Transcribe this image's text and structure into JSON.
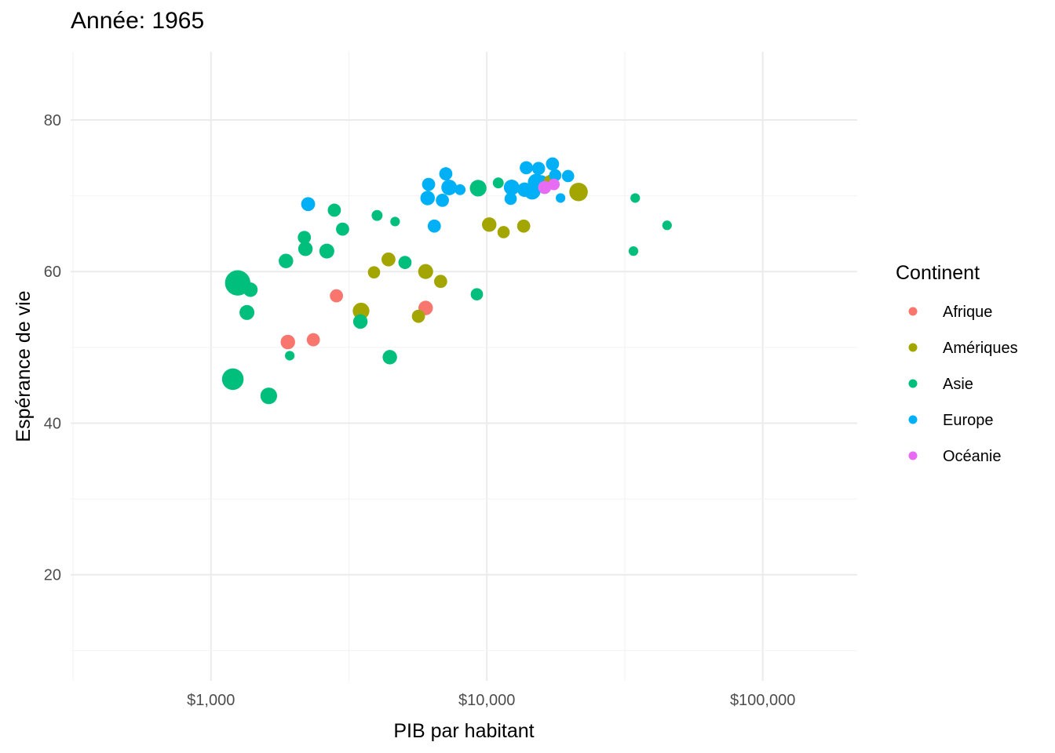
{
  "chart_data": {
    "type": "scatter",
    "title": "Année: 1965",
    "xlabel": "PIB par habitant",
    "ylabel": "Espérance de vie",
    "x_scale": "log10",
    "xlim": [
      310,
      220000
    ],
    "ylim": [
      6,
      89
    ],
    "x_ticks": [
      1000,
      10000,
      100000
    ],
    "x_tick_labels": [
      "$1,000",
      "$10,000",
      "$100,000"
    ],
    "y_ticks": [
      20,
      40,
      60,
      80
    ],
    "y_tick_labels": [
      "20",
      "40",
      "60",
      "80"
    ],
    "grid": true,
    "legend": {
      "title": "Continent",
      "position": "right"
    },
    "size_encoding": "population (no legend shown)",
    "series": [
      {
        "name": "Afrique",
        "color": "#F8766D",
        "points": [
          {
            "x": 1900,
            "y": 50.7,
            "size": 2
          },
          {
            "x": 2350,
            "y": 51.0,
            "size": 1.5
          },
          {
            "x": 2850,
            "y": 56.8,
            "size": 1.5
          },
          {
            "x": 6000,
            "y": 55.2,
            "size": 2
          }
        ]
      },
      {
        "name": "Amériques",
        "color": "#A3A500",
        "points": [
          {
            "x": 3500,
            "y": 54.8,
            "size": 3
          },
          {
            "x": 3900,
            "y": 59.9,
            "size": 1.2
          },
          {
            "x": 4400,
            "y": 61.6,
            "size": 1.8
          },
          {
            "x": 5650,
            "y": 54.1,
            "size": 1.5
          },
          {
            "x": 6000,
            "y": 60.0,
            "size": 2.2
          },
          {
            "x": 6800,
            "y": 58.7,
            "size": 1.5
          },
          {
            "x": 10200,
            "y": 66.2,
            "size": 2
          },
          {
            "x": 11500,
            "y": 65.2,
            "size": 1.2
          },
          {
            "x": 13600,
            "y": 66.0,
            "size": 1.5
          },
          {
            "x": 17000,
            "y": 71.9,
            "size": 1.5
          },
          {
            "x": 21500,
            "y": 70.5,
            "size": 4
          }
        ]
      },
      {
        "name": "Asie",
        "color": "#00BF7D",
        "points": [
          {
            "x": 1250,
            "y": 58.5,
            "size": 9
          },
          {
            "x": 1200,
            "y": 45.8,
            "size": 6
          },
          {
            "x": 1390,
            "y": 57.6,
            "size": 2
          },
          {
            "x": 1350,
            "y": 54.6,
            "size": 2.2
          },
          {
            "x": 1620,
            "y": 43.6,
            "size": 3
          },
          {
            "x": 1870,
            "y": 61.4,
            "size": 2
          },
          {
            "x": 1930,
            "y": 48.9,
            "size": 0.5
          },
          {
            "x": 2180,
            "y": 64.5,
            "size": 1.5
          },
          {
            "x": 2200,
            "y": 63.0,
            "size": 2
          },
          {
            "x": 2630,
            "y": 62.7,
            "size": 2.2
          },
          {
            "x": 2800,
            "y": 68.1,
            "size": 1.5
          },
          {
            "x": 3000,
            "y": 65.6,
            "size": 1.5
          },
          {
            "x": 3480,
            "y": 53.4,
            "size": 2
          },
          {
            "x": 4000,
            "y": 67.4,
            "size": 0.8
          },
          {
            "x": 4450,
            "y": 48.7,
            "size": 2
          },
          {
            "x": 4650,
            "y": 66.6,
            "size": 0.5
          },
          {
            "x": 5050,
            "y": 61.2,
            "size": 1.5
          },
          {
            "x": 9200,
            "y": 57.0,
            "size": 1.2
          },
          {
            "x": 9300,
            "y": 71.0,
            "size": 3
          },
          {
            "x": 11000,
            "y": 71.7,
            "size": 0.8
          },
          {
            "x": 34500,
            "y": 69.7,
            "size": 0.5
          },
          {
            "x": 34000,
            "y": 62.7,
            "size": 0.5
          },
          {
            "x": 45000,
            "y": 66.1,
            "size": 0.5
          }
        ]
      },
      {
        "name": "Europe",
        "color": "#00B0F6",
        "points": [
          {
            "x": 2250,
            "y": 68.9,
            "size": 1.8
          },
          {
            "x": 6100,
            "y": 69.7,
            "size": 2
          },
          {
            "x": 6150,
            "y": 71.5,
            "size": 1.5
          },
          {
            "x": 6450,
            "y": 66.0,
            "size": 1.5
          },
          {
            "x": 6900,
            "y": 69.4,
            "size": 1.5
          },
          {
            "x": 7100,
            "y": 72.9,
            "size": 1.5
          },
          {
            "x": 7300,
            "y": 71.1,
            "size": 2.5
          },
          {
            "x": 8000,
            "y": 70.8,
            "size": 0.8
          },
          {
            "x": 12200,
            "y": 69.6,
            "size": 1.2
          },
          {
            "x": 12300,
            "y": 71.1,
            "size": 2.5
          },
          {
            "x": 13700,
            "y": 70.8,
            "size": 2
          },
          {
            "x": 13900,
            "y": 73.7,
            "size": 1.5
          },
          {
            "x": 14600,
            "y": 70.6,
            "size": 3
          },
          {
            "x": 15100,
            "y": 71.8,
            "size": 3
          },
          {
            "x": 15400,
            "y": 73.6,
            "size": 1.5
          },
          {
            "x": 15700,
            "y": 71.7,
            "size": 2.5
          },
          {
            "x": 17300,
            "y": 74.2,
            "size": 1.5
          },
          {
            "x": 17700,
            "y": 72.7,
            "size": 1.2
          },
          {
            "x": 18500,
            "y": 69.7,
            "size": 0.5
          },
          {
            "x": 19700,
            "y": 72.6,
            "size": 1.2
          }
        ]
      },
      {
        "name": "Océanie",
        "color": "#E76BF3",
        "points": [
          {
            "x": 16200,
            "y": 71.1,
            "size": 1.5
          },
          {
            "x": 17500,
            "y": 71.5,
            "size": 1
          }
        ]
      }
    ]
  }
}
